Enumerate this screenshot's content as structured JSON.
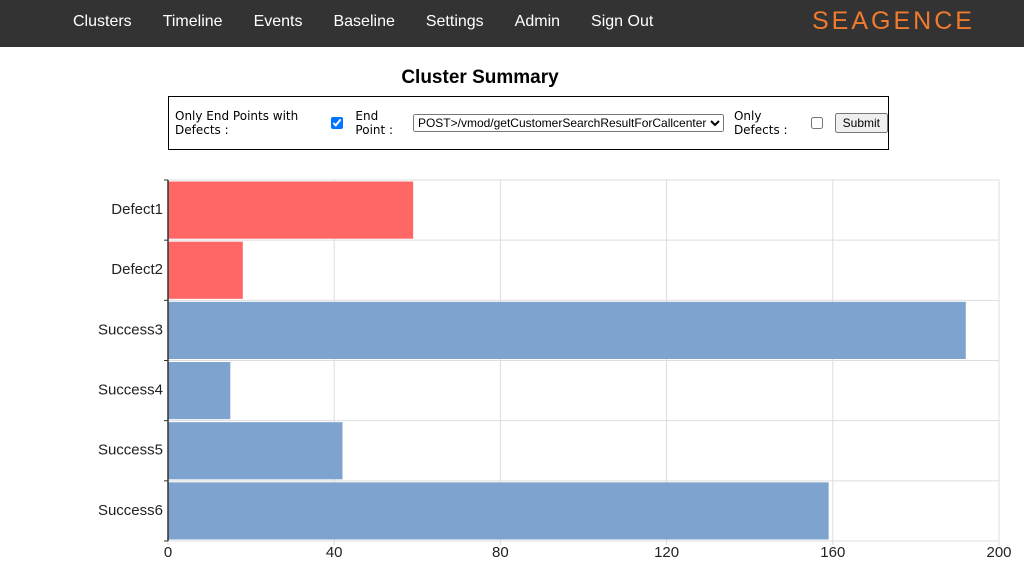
{
  "nav": {
    "items": [
      "Clusters",
      "Timeline",
      "Events",
      "Baseline",
      "Settings",
      "Admin",
      "Sign Out"
    ],
    "logo": "SEAGENCE"
  },
  "form": {
    "only_endpoints_label": "Only End Points with Defects :",
    "only_endpoints_checked": true,
    "endpoint_label": "End Point :",
    "endpoint_value": "POST>/vmod/getCustomerSearchResultForCallcenter",
    "only_defects_label": "Only Defects :",
    "only_defects_checked": false,
    "submit": "Submit"
  },
  "chart_data": {
    "type": "bar",
    "orientation": "horizontal",
    "title": "Cluster Summary",
    "categories": [
      "Defect1",
      "Defect2",
      "Success3",
      "Success4",
      "Success5",
      "Success6"
    ],
    "values": [
      59,
      18,
      192,
      15,
      42,
      159
    ],
    "colors": [
      "#ff6666",
      "#ff6666",
      "#7ea3cf",
      "#7ea3cf",
      "#7ea3cf",
      "#7ea3cf"
    ],
    "xlim": [
      0,
      200
    ],
    "xticks": [
      0,
      40,
      80,
      120,
      160,
      200
    ],
    "grid": true
  }
}
